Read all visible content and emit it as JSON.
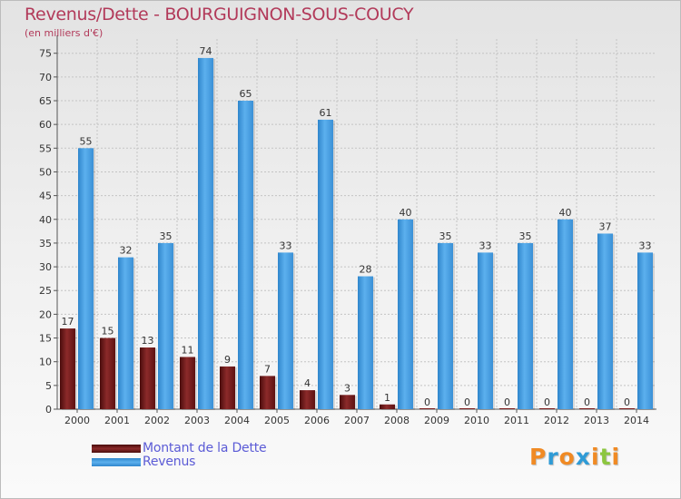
{
  "chart_data": {
    "type": "bar",
    "title": "Revenus/Dette - BOURGUIGNON-SOUS-COUCY",
    "subtitle": "(en milliers d'€)",
    "categories": [
      "2000",
      "2001",
      "2002",
      "2003",
      "2004",
      "2005",
      "2006",
      "2007",
      "2008",
      "2009",
      "2010",
      "2011",
      "2012",
      "2013",
      "2014"
    ],
    "series": [
      {
        "name": "Montant de la Dette",
        "color": "#7a1a1a",
        "values": [
          17,
          15,
          13,
          11,
          9,
          7,
          4,
          3,
          1,
          0,
          0,
          0,
          0,
          0,
          0
        ]
      },
      {
        "name": "Revenus",
        "color": "#4ea3e6",
        "values": [
          55,
          32,
          35,
          74,
          65,
          33,
          61,
          28,
          40,
          35,
          33,
          35,
          40,
          37,
          33
        ]
      }
    ],
    "ylim": [
      0,
      78
    ],
    "yticks": [
      0,
      5,
      10,
      15,
      20,
      25,
      30,
      35,
      40,
      45,
      50,
      55,
      60,
      65,
      70,
      75
    ],
    "grid": true,
    "legend_position": "bottom-left"
  },
  "logo": {
    "text": "Proxiti",
    "letters": [
      "P",
      "r",
      "o",
      "x",
      "i",
      "t",
      "i"
    ],
    "colors": [
      "#f08a24",
      "#2f9bd6",
      "#f08a24",
      "#2f9bd6",
      "#f08a24",
      "#8cc63f",
      "#f08a24"
    ]
  }
}
